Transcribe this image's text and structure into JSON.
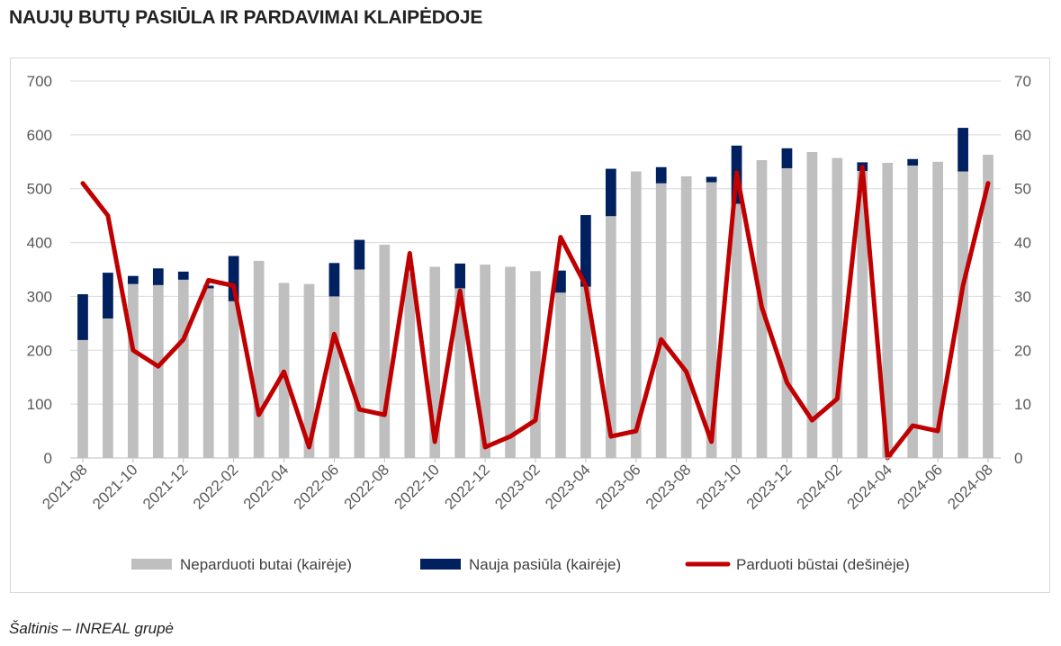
{
  "title": "NAUJŲ BUTŲ PASIŪLA IR PARDAVIMAI KLAIPĖDOJE",
  "source": "Šaltinis – INREAL grupė",
  "colors": {
    "unsold": "#bfbfbf",
    "new_supply": "#002060",
    "sold": "#c00000",
    "grid": "#d9d9d9"
  },
  "chart_data": {
    "type": "bar",
    "stacked": true,
    "categories": [
      "2021-08",
      "2021-09",
      "2021-10",
      "2021-11",
      "2021-12",
      "2022-01",
      "2022-02",
      "2022-03",
      "2022-04",
      "2022-05",
      "2022-06",
      "2022-07",
      "2022-08",
      "2022-09",
      "2022-10",
      "2022-11",
      "2022-12",
      "2023-01",
      "2023-02",
      "2023-03",
      "2023-04",
      "2023-05",
      "2023-06",
      "2023-07",
      "2023-08",
      "2023-09",
      "2023-10",
      "2023-11",
      "2023-12",
      "2024-01",
      "2024-02",
      "2024-03",
      "2024-04",
      "2024-05",
      "2024-06",
      "2024-07",
      "2024-08"
    ],
    "x_tick_labels": [
      "2021-08",
      "2021-10",
      "2021-12",
      "2022-02",
      "2022-04",
      "2022-06",
      "2022-08",
      "2022-10",
      "2022-12",
      "2023-02",
      "2023-04",
      "2023-06",
      "2023-08",
      "2023-10",
      "2023-12",
      "2024-02",
      "2024-04",
      "2024-06",
      "2024-08"
    ],
    "series": [
      {
        "name": "Neparduoti butai (kairėje)",
        "type": "bar",
        "axis": "left",
        "values": [
          219,
          259,
          323,
          321,
          331,
          315,
          291,
          366,
          325,
          323,
          300,
          350,
          396,
          342,
          355,
          315,
          359,
          355,
          347,
          307,
          318,
          449,
          532,
          510,
          523,
          512,
          472,
          553,
          538,
          568,
          557,
          533,
          548,
          543,
          550,
          532,
          563
        ]
      },
      {
        "name": "Nauja pasiūla (kairėje)",
        "type": "bar",
        "axis": "left",
        "values": [
          85,
          85,
          15,
          31,
          15,
          5,
          84,
          0,
          0,
          0,
          62,
          55,
          0,
          0,
          0,
          46,
          0,
          0,
          0,
          41,
          133,
          88,
          0,
          30,
          0,
          10,
          108,
          0,
          37,
          0,
          0,
          16,
          0,
          12,
          0,
          81,
          0
        ]
      },
      {
        "name": "Parduoti būstai (dešinėje)",
        "type": "line",
        "axis": "right",
        "values": [
          51,
          45,
          20,
          17,
          22,
          33,
          32,
          8,
          16,
          2,
          23,
          9,
          8,
          38,
          3,
          31,
          2,
          4,
          7,
          41,
          32,
          4,
          5,
          22,
          16,
          3,
          53,
          28,
          14,
          7,
          11,
          54,
          0,
          6,
          5,
          32,
          51
        ]
      }
    ],
    "ylim_left": [
      0,
      700
    ],
    "yticks_left": [
      "0",
      "100",
      "200",
      "300",
      "400",
      "500",
      "600",
      "700"
    ],
    "ylim_right": [
      0,
      70
    ],
    "yticks_right": [
      "0",
      "10",
      "20",
      "30",
      "40",
      "50",
      "60",
      "70"
    ],
    "grid": true,
    "legend_position": "bottom"
  }
}
